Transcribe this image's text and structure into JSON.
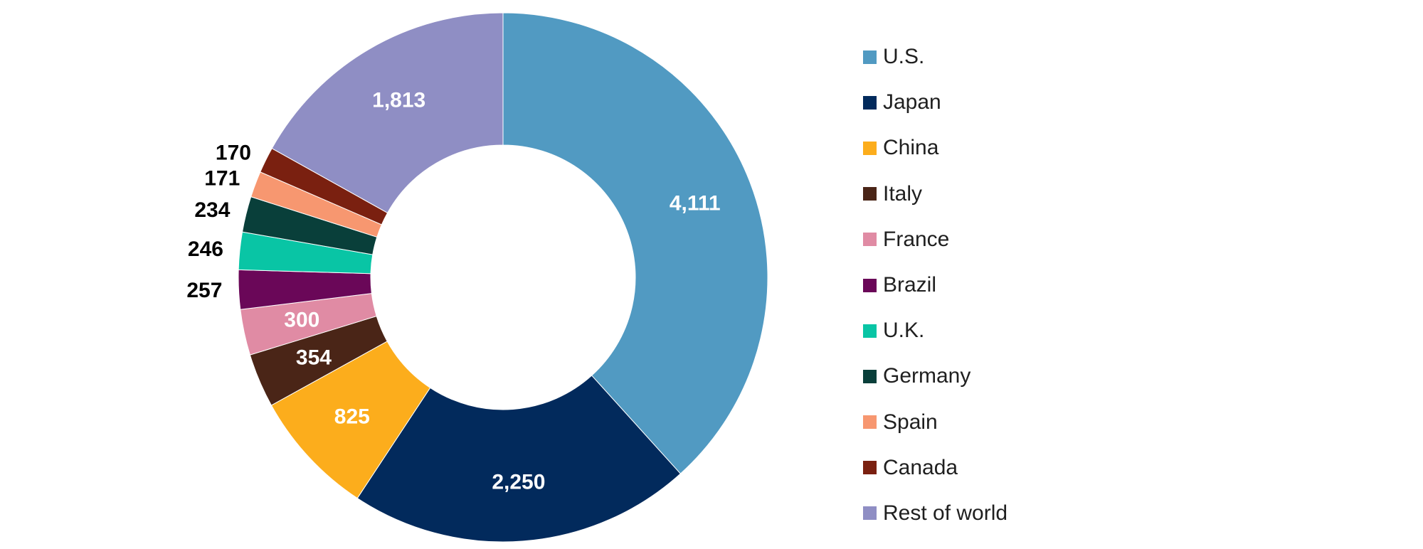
{
  "chart_data": {
    "type": "pie",
    "variant": "donut",
    "legend_position": "right",
    "categories": [
      "U.S.",
      "Japan",
      "China",
      "Italy",
      "France",
      "Brazil",
      "U.K.",
      "Germany",
      "Spain",
      "Canada",
      "Rest of world"
    ],
    "values": [
      4111,
      2250,
      825,
      354,
      300,
      257,
      246,
      234,
      171,
      170,
      1813
    ],
    "labels": [
      "4,111",
      "2,250",
      "825",
      "354",
      "300",
      "257",
      "246",
      "234",
      "171",
      "170",
      "1,813"
    ],
    "colors": [
      "#519ac2",
      "#022a5c",
      "#fcad1c",
      "#4a2517",
      "#e08ba4",
      "#6a0758",
      "#09c5a5",
      "#093f3a",
      "#f79770",
      "#7a2010",
      "#8f8ec4"
    ],
    "label_colors": [
      "#ffffff",
      "#ffffff",
      "#ffffff",
      "#ffffff",
      "#ffffff",
      "#000000",
      "#000000",
      "#000000",
      "#000000",
      "#000000",
      "#ffffff"
    ],
    "label_placement": [
      "inside",
      "inside",
      "inside",
      "inside",
      "inside",
      "outside",
      "outside",
      "outside",
      "outside",
      "outside",
      "inside"
    ]
  }
}
